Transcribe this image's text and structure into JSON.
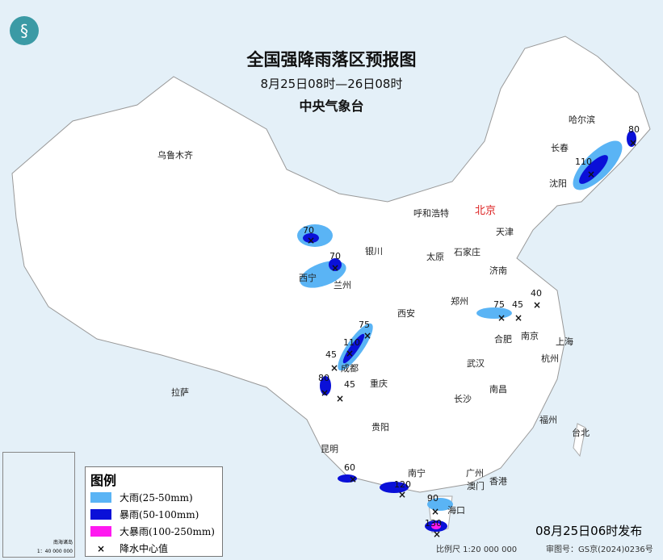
{
  "title": "全国强降雨落区预报图",
  "period": "8月25日08时—26日08时",
  "issuer": "中央气象台",
  "legend": {
    "title": "图例",
    "items": [
      {
        "label": "大雨(25-50mm)",
        "color": "#5ab4f5"
      },
      {
        "label": "暴雨(50-100mm)",
        "color": "#0a10d8"
      },
      {
        "label": "大暴雨(100-250mm)",
        "color": "#ff19f0"
      },
      {
        "label": "降水中心值",
        "symbol": "×"
      }
    ]
  },
  "publish_time": "08月25日06时发布",
  "scale": "比例尺 1:20 000 000",
  "map_number": "审图号：GS京(2024)0236号",
  "inset": {
    "title": "南海诸岛",
    "scale": "1：40 000 000"
  },
  "capital": "北京",
  "cities": [
    "乌鲁木齐",
    "拉萨",
    "西宁",
    "兰州",
    "银川",
    "呼和浩特",
    "天津",
    "石家庄",
    "太原",
    "济南",
    "郑州",
    "西安",
    "成都",
    "重庆",
    "贵阳",
    "昆明",
    "南宁",
    "广州",
    "香港",
    "澳门",
    "海口",
    "武汉",
    "长沙",
    "南昌",
    "合肥",
    "南京",
    "上海",
    "杭州",
    "福州",
    "台北",
    "沈阳",
    "长春",
    "哈尔滨"
  ],
  "rain_centers": [
    "80",
    "110",
    "70",
    "70",
    "75",
    "45",
    "40",
    "75",
    "110",
    "45",
    "80",
    "45",
    "60",
    "120",
    "90",
    "130"
  ]
}
